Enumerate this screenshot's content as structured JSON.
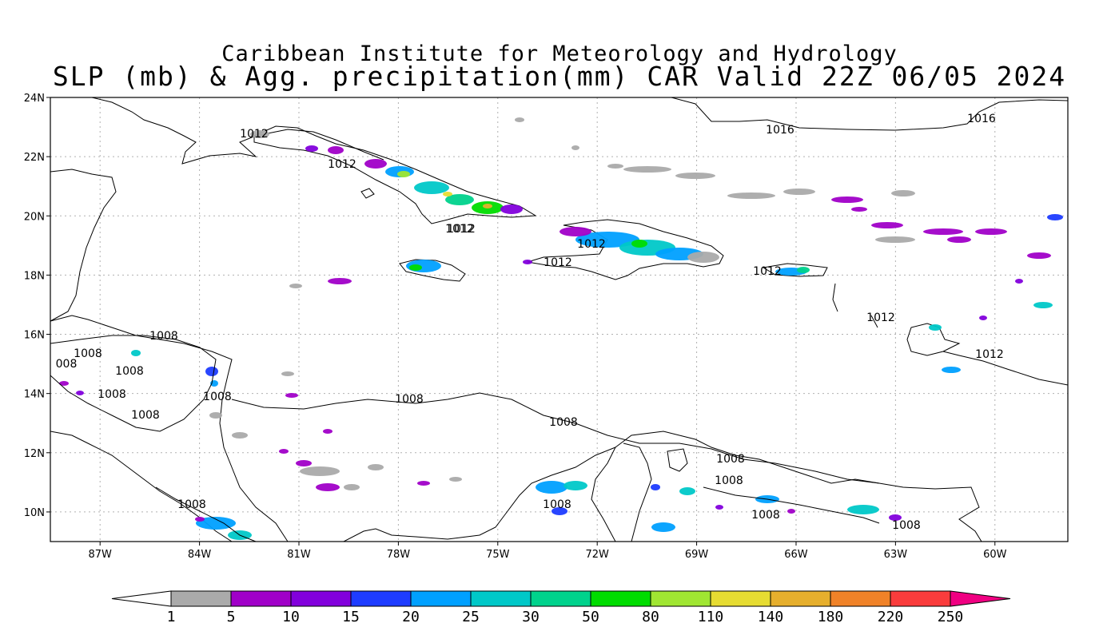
{
  "title": {
    "line1": "Caribbean Institute for Meteorology and Hydrology",
    "line2": "SLP (mb) & Agg. precipitation(mm) CAR Valid 22Z 06/05 2024"
  },
  "map": {
    "lon_range": [
      -88.5,
      -57.8
    ],
    "lat_range": [
      9.0,
      24.0
    ],
    "lon_ticks": [
      "87W",
      "84W",
      "81W",
      "78W",
      "75W",
      "72W",
      "69W",
      "66W",
      "63W",
      "60W"
    ],
    "lat_ticks": [
      "24N",
      "22N",
      "20N",
      "18N",
      "16N",
      "14N",
      "12N",
      "10N"
    ],
    "grid": true,
    "isobar_labels": [
      "1012",
      "1012",
      "1016",
      "1016",
      "1012",
      "1012",
      "1012",
      "1012",
      "1012",
      "1012",
      "1012",
      "1008",
      "1008",
      "008",
      "1008",
      "1008",
      "1008",
      "1008",
      "1008",
      "1008",
      "1008",
      "1008",
      "1008",
      "1008",
      "1008",
      "1008"
    ]
  },
  "colorbar": {
    "labels": [
      "1",
      "5",
      "10",
      "15",
      "20",
      "25",
      "30",
      "50",
      "80",
      "110",
      "140",
      "180",
      "220",
      "250"
    ],
    "colors": [
      "#aaaaaa",
      "#a000c8",
      "#8200dc",
      "#1e3cff",
      "#00a0ff",
      "#00c8c8",
      "#00d28c",
      "#00dc00",
      "#a0e632",
      "#e6dc32",
      "#e6af2d",
      "#f08228",
      "#fa3c3c",
      "#f00082"
    ],
    "under_color": "#ffffff",
    "over_color": "#f00082"
  }
}
